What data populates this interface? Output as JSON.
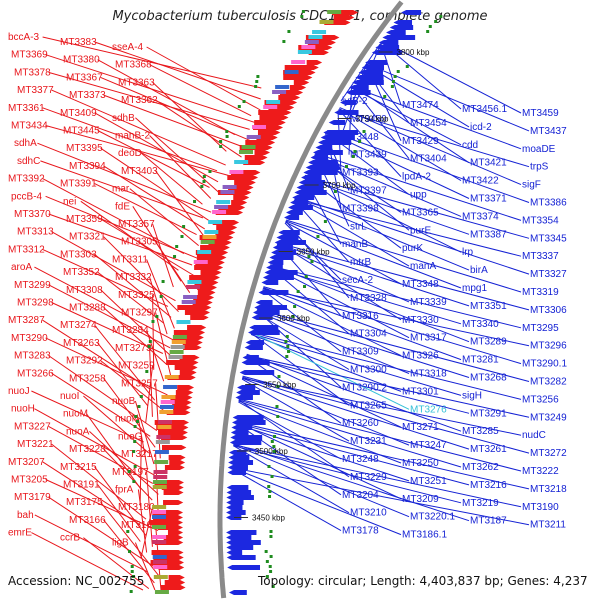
{
  "title": "Mycobacterium tuberculosis CDC1551, complete genome",
  "footer": {
    "accession": "Accession: NC_002755",
    "summary": "Topology: circular; Length: 4,403,837 bp; Genes: 4,237"
  },
  "colors": {
    "left_label": "#e8161b",
    "right_label": "#1522d4",
    "highlight_label": "#35c0d8",
    "forward_strand": "#ee1b1b",
    "reverse_strand": "#1c28e0",
    "backbone": "#8a8a8a",
    "gc_marks": "#1f8c1f"
  },
  "scale_ticks": [
    "3800 kbp",
    "3750 kbp",
    "3700 kbp",
    "3650 kbp",
    "3600 kbp",
    "3550 kbp",
    "3500 kbp",
    "3450 kbp"
  ],
  "left_labels": [
    "bccA-3",
    "MT3383",
    "sseA-4",
    "MT3369",
    "MT3380",
    "MT3368",
    "MT3378",
    "MT3367",
    "MT3363",
    "MT3377",
    "MT3373",
    "MT3362",
    "MT3361",
    "MT3409",
    "sdhB",
    "MT3434",
    "MT3445",
    "manB-2",
    "sdhA",
    "MT3395",
    "deoD",
    "sdhC",
    "MT3394",
    "MT3403",
    "MT3392",
    "MT3391",
    "mar",
    "pccB-4",
    "nei",
    "fdE",
    "MT3370",
    "MT3359",
    "MT3357",
    "MT3313",
    "MT3321",
    "MT3305",
    "MT3312",
    "MT3303",
    "MT3311",
    "aroA",
    "MT3352",
    "MT3332",
    "MT3299",
    "MT3308",
    "MT3325",
    "MT3298",
    "MT3288",
    "MT3297",
    "MT3287",
    "MT3274",
    "MT3284",
    "MT3290",
    "MT3263",
    "MT3273",
    "MT3283",
    "MT3292",
    "MT3259",
    "MT3266",
    "MT3258",
    "MT3257",
    "nuoJ",
    "nuoI",
    "nuoB",
    "nuoH",
    "nuoM",
    "nuoN",
    "MT3227",
    "nuoA",
    "nuoG",
    "MT3221",
    "MT3228",
    "MT3217",
    "MT3207",
    "MT3215",
    "MT3197",
    "MT3205",
    "MT3191",
    "fprA",
    "MT3179",
    "MT3175",
    "MT3180",
    "bah",
    "MT3166",
    "MT3161",
    "emrE",
    "ccrB",
    "ligB"
  ],
  "right_labels": [
    "lytB-2",
    "MT3474",
    "MT3456.1",
    "MT3459",
    "MT3450",
    "MT3454",
    "icd-2",
    "MT3437",
    "MT3448",
    "MT3429",
    "cdd",
    "moaDE",
    "MT3439",
    "MT3404",
    "MT3421",
    "trpS",
    "MT3393",
    "lpdA-2",
    "MT3422",
    "sigF",
    "MT3397",
    "upp",
    "MT3371",
    "MT3386",
    "MT3398",
    "MT3365",
    "MT3374",
    "MT3354",
    "strL",
    "purE",
    "MT3387",
    "MT3345",
    "manB",
    "purK",
    "lrp",
    "MT3337",
    "mtrB",
    "manA",
    "birA",
    "MT3327",
    "secA-2",
    "MT3348",
    "mpg1",
    "MT3319",
    "MT3328",
    "MT3339",
    "MT3351",
    "MT3306",
    "MT3316",
    "MT3330",
    "MT3340",
    "MT3295",
    "MT3304",
    "MT3317",
    "MT3289",
    "MT3296",
    "MT3309",
    "MT3326",
    "MT3281",
    "MT3290.1",
    "MT3300",
    "MT3318",
    "MT3268",
    "MT3282",
    "MT3290.2",
    "MT3301",
    "sigH",
    "MT3256",
    "MT3265",
    "MT3276",
    "MT3291",
    "MT3249",
    "MT3260",
    "MT3271",
    "MT3285",
    "nudC",
    "MT3231",
    "MT3247",
    "MT3261",
    "MT3272",
    "MT3248",
    "MT3250",
    "MT3262",
    "MT3222",
    "MT3229",
    "MT3251",
    "MT3216",
    "MT3218",
    "MT3204",
    "MT3209",
    "MT3219",
    "MT3190",
    "MT3210",
    "MT3220.1",
    "MT3187",
    "MT3211",
    "MT3178",
    "MT3186.1"
  ]
}
